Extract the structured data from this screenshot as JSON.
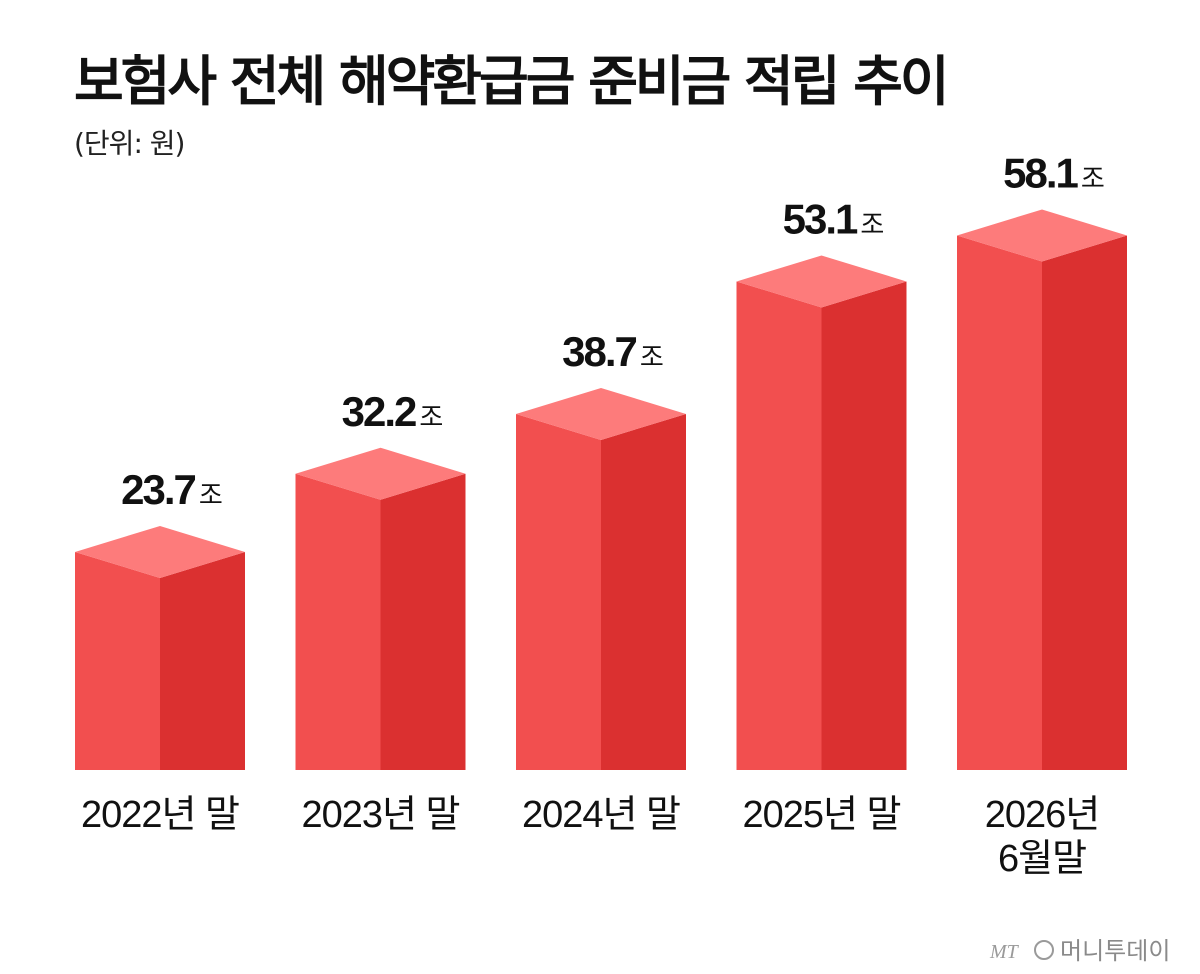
{
  "chart_data": {
    "type": "bar",
    "title": "보험사 전체 해약환급금 준비금 적립 추이",
    "subtitle": "(단위: 원)",
    "categories": [
      [
        "2022년 말"
      ],
      [
        "2023년 말"
      ],
      [
        "2024년 말"
      ],
      [
        "2025년 말"
      ],
      [
        "2026년",
        "6월말"
      ]
    ],
    "values": [
      23.7,
      32.2,
      38.7,
      53.1,
      58.1
    ],
    "value_labels": [
      "23.7",
      "32.2",
      "38.7",
      "53.1",
      "58.1"
    ],
    "value_unit": "조",
    "ylim": [
      0,
      62
    ],
    "grid": false,
    "legend": "none"
  },
  "colors": {
    "bar_front": "#f24f4f",
    "bar_side": "#db3030",
    "bar_top": "#fd7b7b",
    "text": "#111111"
  },
  "credit": {
    "mark": "MT",
    "text": "머니투데이"
  }
}
